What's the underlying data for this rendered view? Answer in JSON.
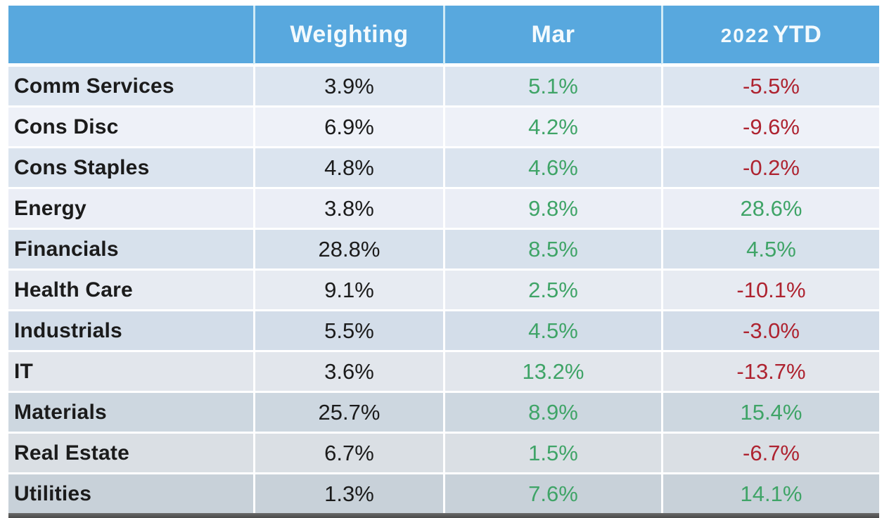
{
  "table": {
    "columns": [
      {
        "label": ""
      },
      {
        "label": "Weighting"
      },
      {
        "label": "Mar"
      },
      {
        "label": "2022 YTD",
        "year": "2022",
        "suffix": "YTD"
      }
    ],
    "rows": [
      {
        "sector": "Comm Services",
        "weighting": "3.9%",
        "mar": "5.1%",
        "ytd": "-5.5%"
      },
      {
        "sector": "Cons Disc",
        "weighting": "6.9%",
        "mar": "4.2%",
        "ytd": "-9.6%"
      },
      {
        "sector": "Cons Staples",
        "weighting": "4.8%",
        "mar": "4.6%",
        "ytd": "-0.2%"
      },
      {
        "sector": "Energy",
        "weighting": "3.8%",
        "mar": "9.8%",
        "ytd": "28.6%"
      },
      {
        "sector": "Financials",
        "weighting": "28.8%",
        "mar": "8.5%",
        "ytd": "4.5%"
      },
      {
        "sector": "Health Care",
        "weighting": "9.1%",
        "mar": "2.5%",
        "ytd": "-10.1%"
      },
      {
        "sector": "Industrials",
        "weighting": "5.5%",
        "mar": "4.5%",
        "ytd": "-3.0%"
      },
      {
        "sector": "IT",
        "weighting": "3.6%",
        "mar": "13.2%",
        "ytd": "-13.7%"
      },
      {
        "sector": "Materials",
        "weighting": "25.7%",
        "mar": "8.9%",
        "ytd": "15.4%"
      },
      {
        "sector": "Real Estate",
        "weighting": "6.7%",
        "mar": "1.5%",
        "ytd": "-6.7%"
      },
      {
        "sector": "Utilities",
        "weighting": "1.3%",
        "mar": "7.6%",
        "ytd": "14.1%"
      }
    ]
  },
  "colors": {
    "header-blue": "#58a8de",
    "header-text": "#f3fafd",
    "text-dark": "#1b1b1b",
    "green": "#3fa467",
    "red": "#ae2330"
  },
  "chart_data": {
    "type": "table",
    "title": "Sector weightings and returns, Mar / 2022 YTD",
    "categories": [
      "Comm Services",
      "Cons Disc",
      "Cons Staples",
      "Energy",
      "Financials",
      "Health Care",
      "Industrials",
      "IT",
      "Materials",
      "Real Estate",
      "Utilities"
    ],
    "series": [
      {
        "name": "Weighting",
        "unit": "%",
        "values": [
          3.9,
          6.9,
          4.8,
          3.8,
          28.8,
          9.1,
          5.5,
          3.6,
          25.7,
          6.7,
          1.3
        ]
      },
      {
        "name": "Mar",
        "unit": "%",
        "values": [
          5.1,
          4.2,
          4.6,
          9.8,
          8.5,
          2.5,
          4.5,
          13.2,
          8.9,
          1.5,
          7.6
        ]
      },
      {
        "name": "2022 YTD",
        "unit": "%",
        "values": [
          -5.5,
          -9.6,
          -0.2,
          28.6,
          4.5,
          -10.1,
          -3.0,
          -13.7,
          15.4,
          -6.7,
          14.1
        ]
      }
    ],
    "legend_position": "none",
    "notes": "Mar values rendered green; 2022 YTD values green if positive, dark red if negative"
  }
}
